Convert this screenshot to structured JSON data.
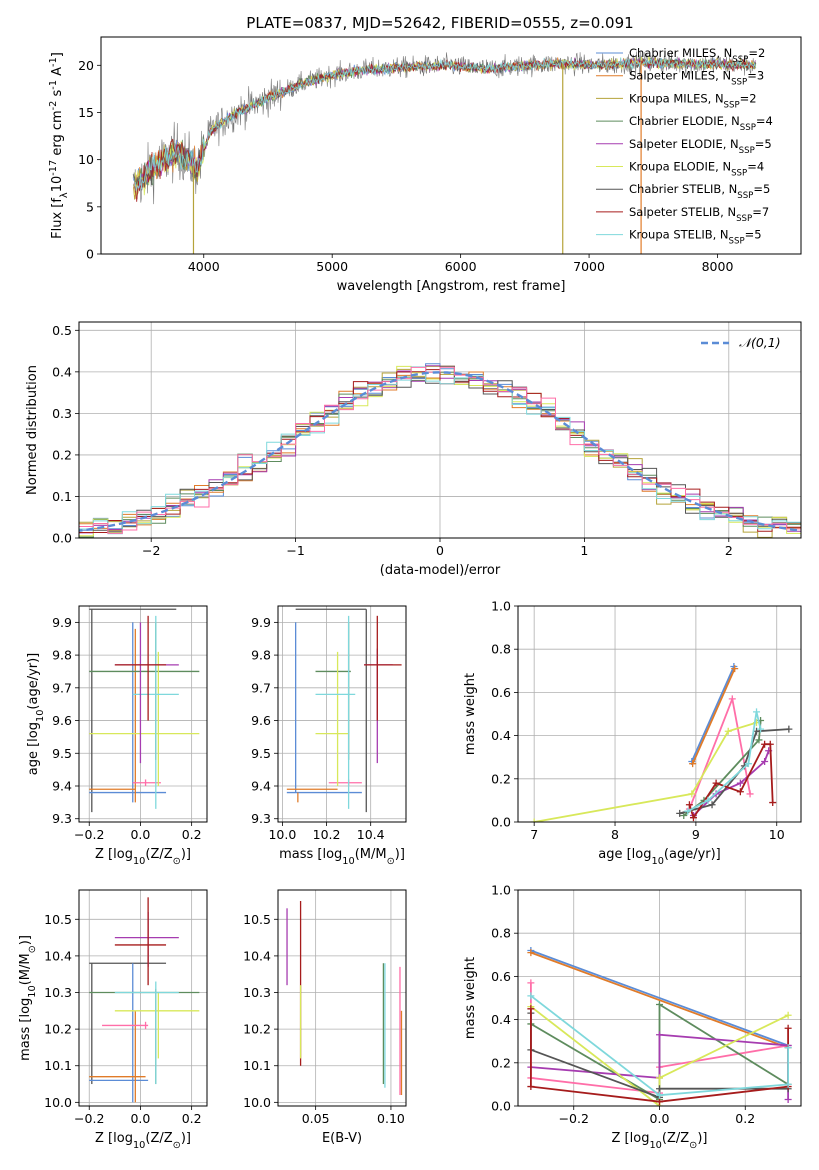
{
  "figure_title": "PLATE=0837, MJD=52642, FIBERID=0555, z=0.091",
  "colors": [
    "#5b8cd6",
    "#e07b29",
    "#b5a33a",
    "#5e8c5e",
    "#a63cb0",
    "#d8e85a",
    "#555555",
    "#a61c1c",
    "#7fd8dc",
    "#ff6ea8"
  ],
  "chart_data": [
    {
      "id": "spectrum",
      "type": "line",
      "title": "PLATE=0837, MJD=52642, FIBERID=0555, z=0.091",
      "xlabel": "wavelength [Angstrom, rest frame]",
      "ylabel": "Flux [f$_\\lambda$10$^{-17}$ erg cm$^{-2}$ s$^{-1}$ A$^{-1}$]",
      "xlim": [
        3200,
        8650
      ],
      "ylim": [
        0,
        23
      ],
      "xticks": [
        4000,
        5000,
        6000,
        7000,
        8000
      ],
      "yticks": [
        0,
        5,
        10,
        15,
        20
      ],
      "grid": false,
      "legend_position": "top-right",
      "continuum_x": [
        3450,
        3600,
        3800,
        3950,
        4050,
        4250,
        4500,
        4750,
        5000,
        5300,
        5600,
        5900,
        6200,
        6500,
        6800,
        7100,
        7400,
        7700,
        8000,
        8300
      ],
      "continuum_y": [
        7,
        9,
        11,
        9,
        13,
        15,
        16.5,
        18,
        19,
        19.6,
        19.8,
        20,
        19.6,
        20,
        20.2,
        20,
        20.3,
        20.2,
        20.1,
        20
      ],
      "series": [
        {
          "name": "Chabrier MILES, N$_{SSP}$=2",
          "color": "#5b8cd6"
        },
        {
          "name": "Salpeter MILES, N$_{SSP}$=3",
          "color": "#e07b29"
        },
        {
          "name": "Kroupa MILES, N$_{SSP}$=2",
          "color": "#b5a33a"
        },
        {
          "name": "Chabrier ELODIE, N$_{SSP}$=4",
          "color": "#5e8c5e"
        },
        {
          "name": "Salpeter ELODIE, N$_{SSP}$=5",
          "color": "#a63cb0"
        },
        {
          "name": "Kroupa ELODIE, N$_{SSP}$=4",
          "color": "#d8e85a"
        },
        {
          "name": "Chabrier STELIB, N$_{SSP}$=5",
          "color": "#555555"
        },
        {
          "name": "Salpeter STELIB, N$_{SSP}$=7",
          "color": "#a61c1c"
        },
        {
          "name": "Kroupa STELIB, N$_{SSP}$=5",
          "color": "#7fd8dc"
        }
      ],
      "spikes": [
        {
          "x": 3920,
          "y_low": 0,
          "color": "#b5a33a"
        },
        {
          "x": 6795,
          "y_low": 0,
          "color": "#b5a33a"
        },
        {
          "x": 7405,
          "y_low": 0,
          "color": "#e07b29"
        }
      ]
    },
    {
      "id": "residuals",
      "type": "histogram",
      "xlabel": "(data-model)/error",
      "ylabel": "Normed distribution",
      "xlim": [
        -2.5,
        2.5
      ],
      "ylim": [
        0,
        0.52
      ],
      "xticks": [
        -2,
        -1,
        0,
        1,
        2
      ],
      "yticks": [
        0.0,
        0.1,
        0.2,
        0.3,
        0.4,
        0.5
      ],
      "grid": true,
      "legend_position": "top-right",
      "reference": {
        "name": "$\\mathcal{N}(0,1)$",
        "mean": 0,
        "sigma": 1,
        "color": "#5b8cd6"
      },
      "bin_width": 0.1,
      "series_colors": [
        "#5b8cd6",
        "#e07b29",
        "#b5a33a",
        "#5e8c5e",
        "#a63cb0",
        "#d8e85a",
        "#555555",
        "#a61c1c",
        "#7fd8dc",
        "#ff6ea8"
      ]
    },
    {
      "id": "z-age",
      "type": "errorbar",
      "xlabel": "Z [log$_{10}$(Z/Z$_\\odot$)]",
      "ylabel": "age  [log$_{10}$(age/yr)]",
      "xlim": [
        -0.24,
        0.26
      ],
      "ylim": [
        9.29,
        9.95
      ],
      "xticks": [
        -0.2,
        0.0,
        0.2
      ],
      "yticks": [
        9.3,
        9.4,
        9.5,
        9.6,
        9.7,
        9.8,
        9.9
      ],
      "grid": true,
      "points": [
        {
          "x": -0.19,
          "xl": -0.2,
          "xh": 0.14,
          "y": 9.94,
          "yl": 9.32,
          "yh": 9.94,
          "color": "#555555"
        },
        {
          "x": -0.03,
          "xl": -0.2,
          "xh": 0.1,
          "y": 9.38,
          "yl": 9.35,
          "yh": 9.9,
          "color": "#5b8cd6"
        },
        {
          "x": -0.02,
          "xl": -0.2,
          "xh": -0.02,
          "y": 9.39,
          "yl": 9.35,
          "yh": 9.88,
          "color": "#e07b29"
        },
        {
          "x": 0.02,
          "xl": -0.03,
          "xh": 0.08,
          "y": 9.41,
          "yl": 9.4,
          "yh": 9.42,
          "color": "#ff6ea8"
        },
        {
          "x": 0.06,
          "xl": -0.2,
          "xh": 0.23,
          "y": 9.75,
          "yl": 9.48,
          "yh": 9.9,
          "color": "#5e8c5e"
        },
        {
          "x": 0.07,
          "xl": -0.2,
          "xh": 0.23,
          "y": 9.56,
          "yl": 9.4,
          "yh": 9.81,
          "color": "#d8e85a"
        },
        {
          "x": 0.06,
          "xl": -0.03,
          "xh": 0.15,
          "y": 9.68,
          "yl": 9.33,
          "yh": 9.92,
          "color": "#7fd8dc"
        },
        {
          "x": 0.0,
          "xl": -0.1,
          "xh": 0.15,
          "y": 9.77,
          "yl": 9.47,
          "yh": 9.9,
          "color": "#a63cb0"
        },
        {
          "x": 0.03,
          "xl": -0.1,
          "xh": 0.1,
          "y": 9.77,
          "yl": 9.6,
          "yh": 9.92,
          "color": "#a61c1c"
        }
      ]
    },
    {
      "id": "mass-age",
      "type": "errorbar",
      "xlabel": "mass [log$_{10}$(M/M$_\\odot$)]",
      "ylabel": "",
      "xlim": [
        9.98,
        10.56
      ],
      "ylim": [
        9.29,
        9.95
      ],
      "xticks": [
        10.0,
        10.2,
        10.4
      ],
      "yticks": [
        9.3,
        9.4,
        9.5,
        9.6,
        9.7,
        9.8,
        9.9
      ],
      "grid": true,
      "points": [
        {
          "x": 10.38,
          "xl": 10.06,
          "xh": 10.38,
          "y": 9.94,
          "yl": 9.32,
          "yh": 9.94,
          "color": "#555555"
        },
        {
          "x": 10.06,
          "xl": 10.02,
          "xh": 10.36,
          "y": 9.38,
          "yl": 9.38,
          "yh": 9.9,
          "color": "#5b8cd6"
        },
        {
          "x": 10.07,
          "xl": 10.02,
          "xh": 10.25,
          "y": 9.39,
          "yl": 9.35,
          "yh": 9.38,
          "color": "#e07b29"
        },
        {
          "x": 10.3,
          "xl": 10.21,
          "xh": 10.36,
          "y": 9.41,
          "yl": 9.4,
          "yh": 9.42,
          "color": "#ff6ea8"
        },
        {
          "x": 10.3,
          "xl": 10.15,
          "xh": 10.31,
          "y": 9.75,
          "yl": 9.48,
          "yh": 9.9,
          "color": "#5e8c5e"
        },
        {
          "x": 10.25,
          "xl": 10.15,
          "xh": 10.3,
          "y": 9.56,
          "yl": 9.4,
          "yh": 9.81,
          "color": "#d8e85a"
        },
        {
          "x": 10.3,
          "xl": 10.15,
          "xh": 10.33,
          "y": 9.68,
          "yl": 9.33,
          "yh": 9.92,
          "color": "#7fd8dc"
        },
        {
          "x": 10.43,
          "xl": 10.37,
          "xh": 10.5,
          "y": 9.77,
          "yl": 9.47,
          "yh": 9.82,
          "color": "#a63cb0"
        },
        {
          "x": 10.43,
          "xl": 10.37,
          "xh": 10.54,
          "y": 9.77,
          "yl": 9.6,
          "yh": 9.92,
          "color": "#a61c1c"
        }
      ]
    },
    {
      "id": "age-weight",
      "type": "line",
      "xlabel": "age  [log$_{10}$(age/yr)]",
      "ylabel": "mass weight",
      "xlim": [
        6.8,
        10.3
      ],
      "ylim": [
        0,
        1.0
      ],
      "xticks": [
        7,
        8,
        9,
        10
      ],
      "yticks": [
        0.0,
        0.2,
        0.4,
        0.6,
        0.8,
        1.0
      ],
      "grid": true,
      "series": [
        {
          "color": "#5b8cd6",
          "x": [
            8.95,
            9.47
          ],
          "y": [
            0.28,
            0.72
          ]
        },
        {
          "color": "#e07b29",
          "x": [
            8.96,
            9.48
          ],
          "y": [
            0.27,
            0.71
          ]
        },
        {
          "color": "#ff6ea8",
          "x": [
            8.92,
            9.45,
            9.67
          ],
          "y": [
            0.06,
            0.57,
            0.13
          ]
        },
        {
          "color": "#5e8c5e",
          "x": [
            8.85,
            9.1,
            9.78,
            9.8
          ],
          "y": [
            0.03,
            0.1,
            0.38,
            0.47
          ]
        },
        {
          "color": "#a63cb0",
          "x": [
            8.97,
            9.25,
            9.55,
            9.85,
            9.9
          ],
          "y": [
            0.03,
            0.13,
            0.18,
            0.28,
            0.33
          ]
        },
        {
          "color": "#d8e85a",
          "x": [
            7.0,
            8.95,
            9.4,
            9.75
          ],
          "y": [
            0.0,
            0.13,
            0.42,
            0.46
          ]
        },
        {
          "color": "#555555",
          "x": [
            8.8,
            9.2,
            9.6,
            9.75,
            10.15
          ],
          "y": [
            0.04,
            0.08,
            0.26,
            0.42,
            0.43
          ]
        },
        {
          "color": "#a61c1c",
          "x": [
            8.92,
            8.97,
            9.25,
            9.55,
            9.85,
            9.92,
            9.95
          ],
          "y": [
            0.08,
            0.02,
            0.18,
            0.14,
            0.36,
            0.36,
            0.09
          ]
        },
        {
          "color": "#7fd8dc",
          "x": [
            8.9,
            9.15,
            9.65,
            9.75,
            9.8
          ],
          "y": [
            0.05,
            0.1,
            0.27,
            0.51,
            0.43
          ]
        }
      ]
    },
    {
      "id": "z-mass",
      "type": "errorbar",
      "xlabel": "Z [log$_{10}$(Z/Z$_\\odot$)]",
      "ylabel": "mass [log$_{10}$(M/M$_\\odot$)]",
      "xlim": [
        -0.24,
        0.26
      ],
      "ylim": [
        9.99,
        10.58
      ],
      "xticks": [
        -0.2,
        0.0,
        0.2
      ],
      "yticks": [
        10.0,
        10.1,
        10.2,
        10.3,
        10.4,
        10.5
      ],
      "grid": true,
      "points": [
        {
          "x": -0.19,
          "xl": -0.2,
          "xh": 0.1,
          "y": 10.38,
          "yl": 10.05,
          "yh": 10.38,
          "color": "#555555"
        },
        {
          "x": -0.03,
          "xl": -0.2,
          "xh": 0.03,
          "y": 10.06,
          "yl": 10.0,
          "yh": 10.38,
          "color": "#5b8cd6"
        },
        {
          "x": -0.02,
          "xl": -0.2,
          "xh": 0.02,
          "y": 10.07,
          "yl": 10.0,
          "yh": 10.25,
          "color": "#e07b29"
        },
        {
          "x": 0.02,
          "xl": -0.15,
          "xh": 0.03,
          "y": 10.21,
          "yl": 10.2,
          "yh": 10.22,
          "color": "#ff6ea8"
        },
        {
          "x": 0.06,
          "xl": -0.2,
          "xh": 0.23,
          "y": 10.3,
          "yl": 10.05,
          "yh": 10.31,
          "color": "#5e8c5e"
        },
        {
          "x": 0.07,
          "xl": -0.1,
          "xh": 0.23,
          "y": 10.25,
          "yl": 10.12,
          "yh": 10.3,
          "color": "#d8e85a"
        },
        {
          "x": 0.06,
          "xl": -0.1,
          "xh": 0.15,
          "y": 10.3,
          "yl": 10.05,
          "yh": 10.33,
          "color": "#7fd8dc"
        },
        {
          "x": 0.03,
          "xl": -0.1,
          "xh": 0.15,
          "y": 10.45,
          "yl": 10.37,
          "yh": 10.52,
          "color": "#a63cb0"
        },
        {
          "x": 0.03,
          "xl": -0.1,
          "xh": 0.1,
          "y": 10.43,
          "yl": 10.32,
          "yh": 10.56,
          "color": "#a61c1c"
        }
      ]
    },
    {
      "id": "ebv-mass",
      "type": "errorbar",
      "xlabel": "E(B-V)",
      "ylabel": "",
      "xlim": [
        0.025,
        0.11
      ],
      "ylim": [
        9.99,
        10.58
      ],
      "xticks": [
        0.05,
        0.1
      ],
      "yticks": [
        10.0,
        10.1,
        10.2,
        10.3,
        10.4,
        10.5
      ],
      "grid": true,
      "points": [
        {
          "x": 0.031,
          "yl": 10.32,
          "yh": 10.53,
          "color": "#a63cb0"
        },
        {
          "x": 0.04,
          "yl": 10.1,
          "yh": 10.55,
          "color": "#a61c1c"
        },
        {
          "x": 0.04,
          "yl": 10.12,
          "yh": 10.32,
          "color": "#d8e85a"
        },
        {
          "x": 0.095,
          "yl": 10.05,
          "yh": 10.38,
          "color": "#5e8c5e"
        },
        {
          "x": 0.096,
          "yl": 10.04,
          "yh": 10.38,
          "color": "#7fd8dc"
        },
        {
          "x": 0.106,
          "yl": 10.02,
          "yh": 10.37,
          "color": "#ff6ea8"
        },
        {
          "x": 0.107,
          "yl": 10.02,
          "yh": 10.25,
          "color": "#e07b29"
        }
      ]
    },
    {
      "id": "z-weight",
      "type": "line",
      "xlabel": "Z [log$_{10}$(Z/Z$_\\odot$)]",
      "ylabel": "mass weight",
      "xlim": [
        -0.33,
        0.33
      ],
      "ylim": [
        0,
        1.0
      ],
      "xticks": [
        -0.2,
        0.0,
        0.2
      ],
      "yticks": [
        0.0,
        0.2,
        0.4,
        0.6,
        0.8,
        1.0
      ],
      "grid": true,
      "series": [
        {
          "color": "#5b8cd6",
          "x": [
            -0.3,
            0.3
          ],
          "y": [
            0.72,
            0.28
          ]
        },
        {
          "color": "#e07b29",
          "x": [
            -0.3,
            0.3
          ],
          "y": [
            0.71,
            0.27
          ]
        },
        {
          "color": "#ff6ea8",
          "x": [
            -0.3,
            -0.3,
            0.0,
            0.0,
            0.3
          ],
          "y": [
            0.57,
            0.13,
            0.06,
            0.18,
            0.28
          ]
        },
        {
          "color": "#5e8c5e",
          "x": [
            -0.3,
            0.0,
            0.0,
            0.3
          ],
          "y": [
            0.38,
            0.03,
            0.47,
            0.1
          ]
        },
        {
          "color": "#a63cb0",
          "x": [
            -0.3,
            0.0,
            0.0,
            0.3,
            0.3
          ],
          "y": [
            0.18,
            0.13,
            0.33,
            0.28,
            0.03
          ]
        },
        {
          "color": "#d8e85a",
          "x": [
            -0.3,
            0.0,
            0.0,
            0.3
          ],
          "y": [
            0.46,
            0.0,
            0.13,
            0.42
          ]
        },
        {
          "color": "#555555",
          "x": [
            -0.3,
            -0.3,
            0.0,
            0.0,
            0.3
          ],
          "y": [
            0.43,
            0.26,
            0.04,
            0.08,
            0.08
          ]
        },
        {
          "color": "#a61c1c",
          "x": [
            -0.3,
            -0.3,
            0.0,
            0.3,
            0.3
          ],
          "y": [
            0.45,
            0.09,
            0.02,
            0.09,
            0.36
          ]
        },
        {
          "color": "#7fd8dc",
          "x": [
            -0.3,
            0.0,
            0.0,
            0.3,
            0.3
          ],
          "y": [
            0.51,
            0.05,
            0.05,
            0.1,
            0.27
          ]
        }
      ]
    }
  ]
}
